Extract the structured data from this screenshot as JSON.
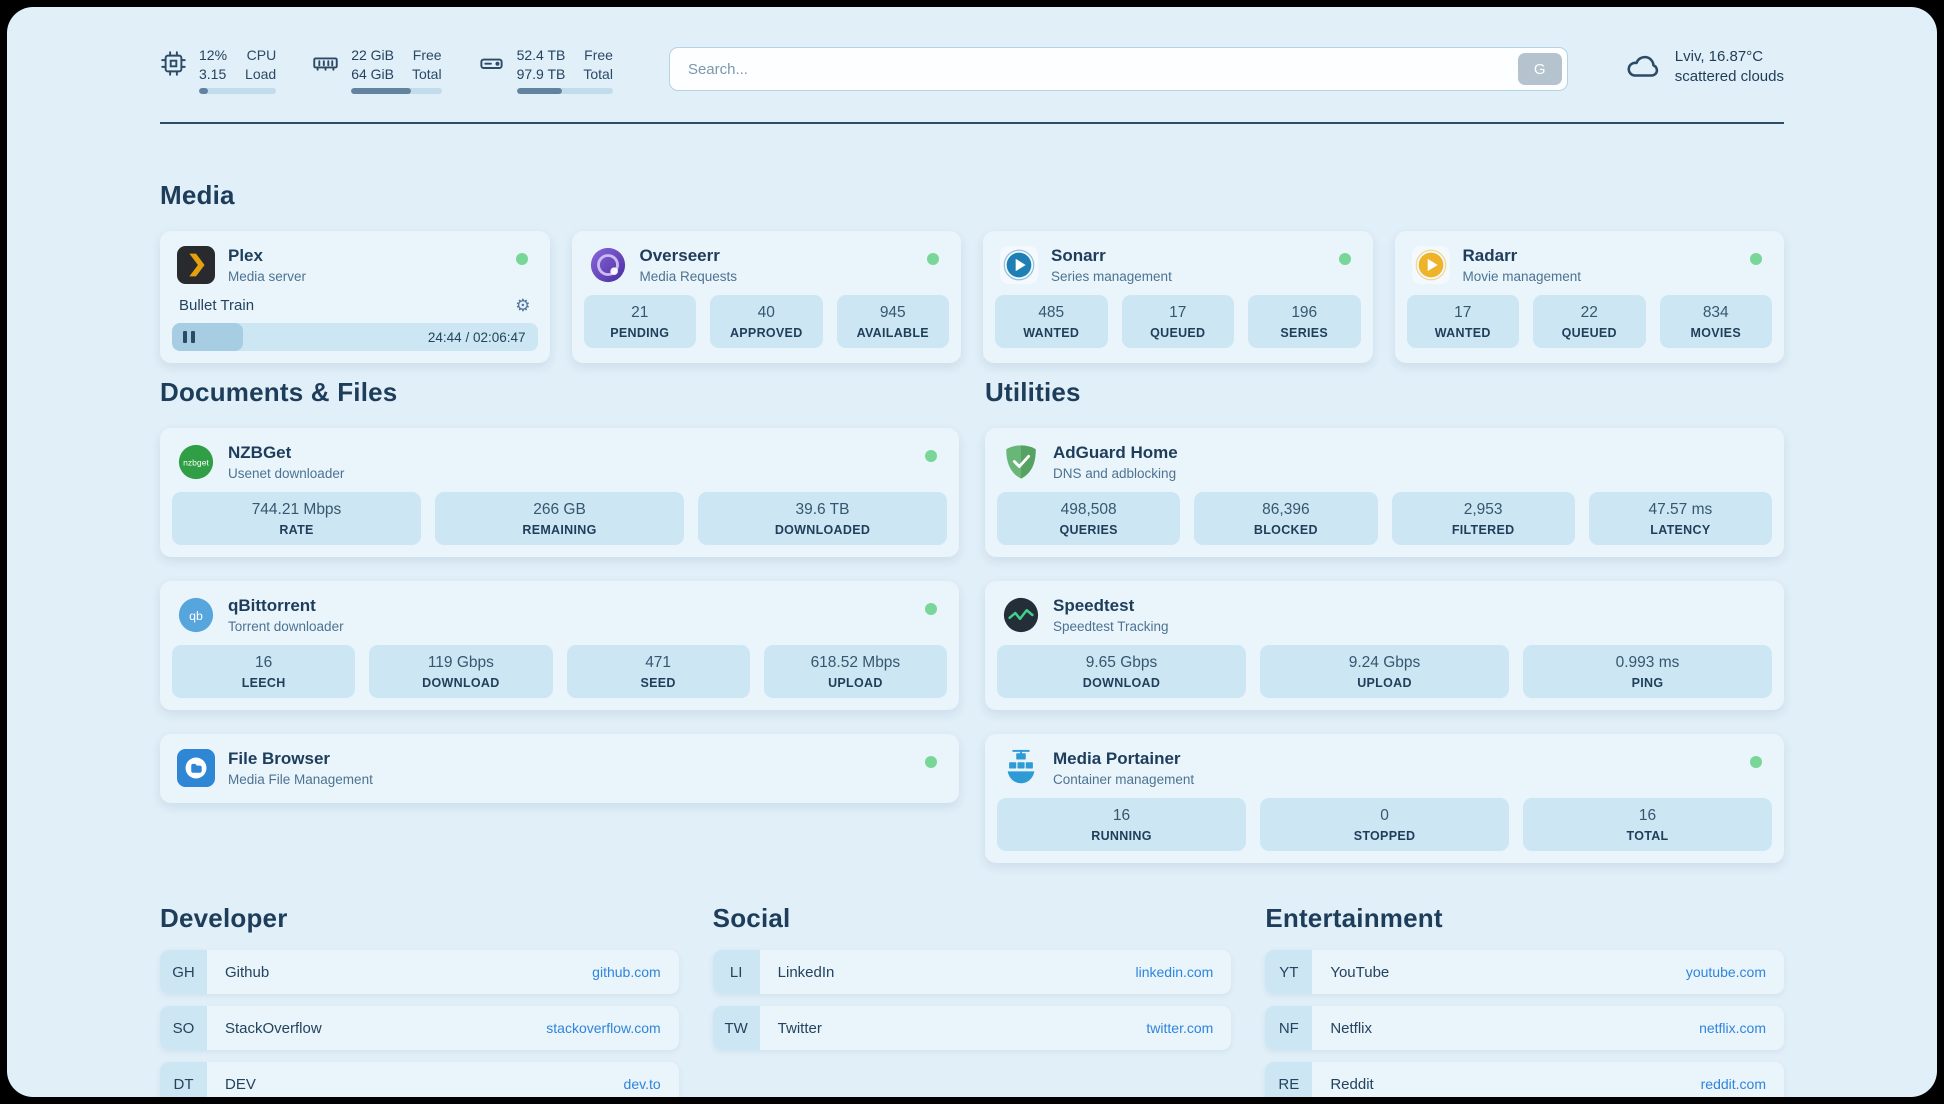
{
  "icons": {
    "gear": "⚙"
  },
  "topbar": {
    "cpu": {
      "v1": "12%",
      "l1": "CPU",
      "v2": "3.15",
      "l2": "Load",
      "percent": 12
    },
    "memory": {
      "v1": "22 GiB",
      "l1": "Free",
      "v2": "64 GiB",
      "l2": "Total",
      "percent": 66
    },
    "disk": {
      "v1": "52.4 TB",
      "l1": "Free",
      "v2": "97.9 TB",
      "l2": "Total",
      "percent": 47
    },
    "search": {
      "placeholder": "Search...",
      "button_label": "G"
    },
    "weather": {
      "location": "Lviv, 16.87°C",
      "condition": "scattered clouds"
    }
  },
  "media": {
    "title": "Media",
    "plex": {
      "name": "Plex",
      "desc": "Media server",
      "now_playing": "Bullet Train",
      "time": "24:44 / 02:06:47",
      "progress_percent": 19.5
    },
    "overseerr": {
      "name": "Overseerr",
      "desc": "Media Requests",
      "stats": [
        {
          "value": "21",
          "label": "PENDING"
        },
        {
          "value": "40",
          "label": "APPROVED"
        },
        {
          "value": "945",
          "label": "AVAILABLE"
        }
      ]
    },
    "sonarr": {
      "name": "Sonarr",
      "desc": "Series management",
      "stats": [
        {
          "value": "485",
          "label": "WANTED"
        },
        {
          "value": "17",
          "label": "QUEUED"
        },
        {
          "value": "196",
          "label": "SERIES"
        }
      ]
    },
    "radarr": {
      "name": "Radarr",
      "desc": "Movie management",
      "stats": [
        {
          "value": "17",
          "label": "WANTED"
        },
        {
          "value": "22",
          "label": "QUEUED"
        },
        {
          "value": "834",
          "label": "MOVIES"
        }
      ]
    }
  },
  "documents": {
    "title": "Documents & Files",
    "nzbget": {
      "name": "NZBGet",
      "desc": "Usenet downloader",
      "stats": [
        {
          "value": "744.21 Mbps",
          "label": "RATE"
        },
        {
          "value": "266 GB",
          "label": "REMAINING"
        },
        {
          "value": "39.6 TB",
          "label": "DOWNLOADED"
        }
      ]
    },
    "qbittorrent": {
      "name": "qBittorrent",
      "desc": "Torrent downloader",
      "stats": [
        {
          "value": "16",
          "label": "LEECH"
        },
        {
          "value": "119 Gbps",
          "label": "DOWNLOAD"
        },
        {
          "value": "471",
          "label": "SEED"
        },
        {
          "value": "618.52 Mbps",
          "label": "UPLOAD"
        }
      ]
    },
    "filebrowser": {
      "name": "File Browser",
      "desc": "Media File Management"
    }
  },
  "utilities": {
    "title": "Utilities",
    "adguard": {
      "name": "AdGuard Home",
      "desc": "DNS and adblocking",
      "stats": [
        {
          "value": "498,508",
          "label": "QUERIES"
        },
        {
          "value": "86,396",
          "label": "BLOCKED"
        },
        {
          "value": "2,953",
          "label": "FILTERED"
        },
        {
          "value": "47.57 ms",
          "label": "LATENCY"
        }
      ]
    },
    "speedtest": {
      "name": "Speedtest",
      "desc": "Speedtest Tracking",
      "stats": [
        {
          "value": "9.65 Gbps",
          "label": "DOWNLOAD"
        },
        {
          "value": "9.24 Gbps",
          "label": "UPLOAD"
        },
        {
          "value": "0.993 ms",
          "label": "PING"
        }
      ]
    },
    "portainer": {
      "name": "Media Portainer",
      "desc": "Container management",
      "stats": [
        {
          "value": "16",
          "label": "RUNNING"
        },
        {
          "value": "0",
          "label": "STOPPED"
        },
        {
          "value": "16",
          "label": "TOTAL"
        }
      ]
    }
  },
  "bookmarks": {
    "developer": {
      "title": "Developer",
      "items": [
        {
          "abbr": "GH",
          "name": "Github",
          "link": "github.com"
        },
        {
          "abbr": "SO",
          "name": "StackOverflow",
          "link": "stackoverflow.com"
        },
        {
          "abbr": "DT",
          "name": "DEV",
          "link": "dev.to"
        }
      ]
    },
    "social": {
      "title": "Social",
      "items": [
        {
          "abbr": "LI",
          "name": "LinkedIn",
          "link": "linkedin.com"
        },
        {
          "abbr": "TW",
          "name": "Twitter",
          "link": "twitter.com"
        }
      ]
    },
    "entertainment": {
      "title": "Entertainment",
      "items": [
        {
          "abbr": "YT",
          "name": "YouTube",
          "link": "youtube.com"
        },
        {
          "abbr": "NF",
          "name": "Netflix",
          "link": "netflix.com"
        },
        {
          "abbr": "RE",
          "name": "Reddit",
          "link": "reddit.com"
        }
      ]
    }
  }
}
